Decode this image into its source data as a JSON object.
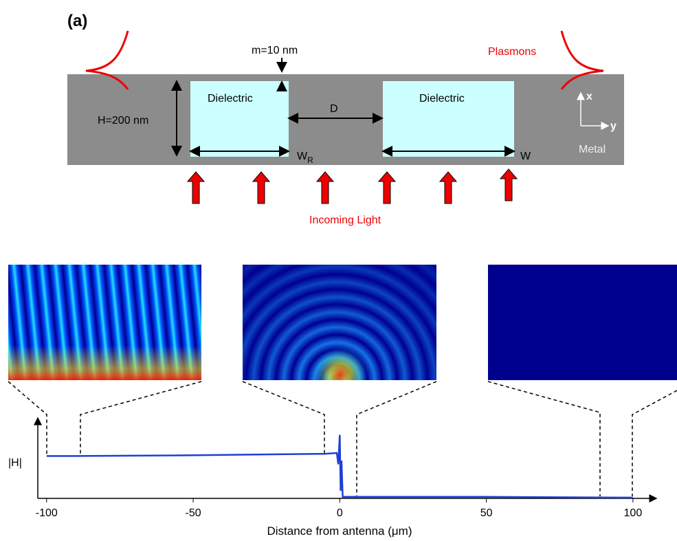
{
  "panel_label": "(a)",
  "schematic": {
    "gap_label": "m=10 nm",
    "plasmons_label": "Plasmons",
    "height_label": "H=200 nm",
    "dielectric_left": "Dielectric",
    "dielectric_right": "Dielectric",
    "distance_label": "D",
    "width_r_label": {
      "main": "W",
      "sub": "R"
    },
    "width_label": "W",
    "axis_x": "x",
    "axis_y": "y",
    "metal_label": "Metal",
    "light_label": "Incoming Light"
  },
  "chart_data": {
    "type": "line",
    "xlabel": "Distance from antenna (μm)",
    "ylabel": "|H|",
    "xlim": [
      -103,
      108
    ],
    "ylim": [
      0,
      1
    ],
    "xticks": [
      -100,
      -50,
      0,
      50,
      100
    ],
    "x": [
      -100,
      -90,
      -50,
      -5,
      -1,
      -0.5,
      0,
      0.3,
      0.6,
      1,
      5,
      50,
      100
    ],
    "series": [
      {
        "color": "#1f3fd6",
        "values": [
          0.56,
          0.56,
          0.57,
          0.59,
          0.6,
          0.45,
          0.84,
          0.1,
          0.5,
          0.02,
          0.02,
          0.02,
          0.01
        ]
      }
    ]
  }
}
